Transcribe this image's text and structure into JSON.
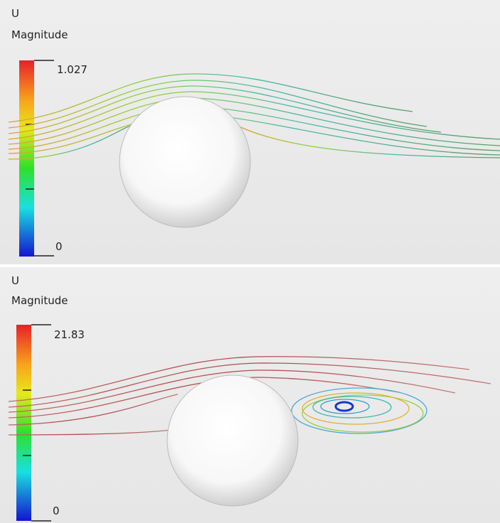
{
  "panels": [
    {
      "field": "U",
      "quantity": "Magnitude",
      "max_label": "1.027",
      "min_label": "0"
    },
    {
      "field": "U",
      "quantity": "Magnitude",
      "max_label": "21.83",
      "min_label": "0"
    }
  ]
}
